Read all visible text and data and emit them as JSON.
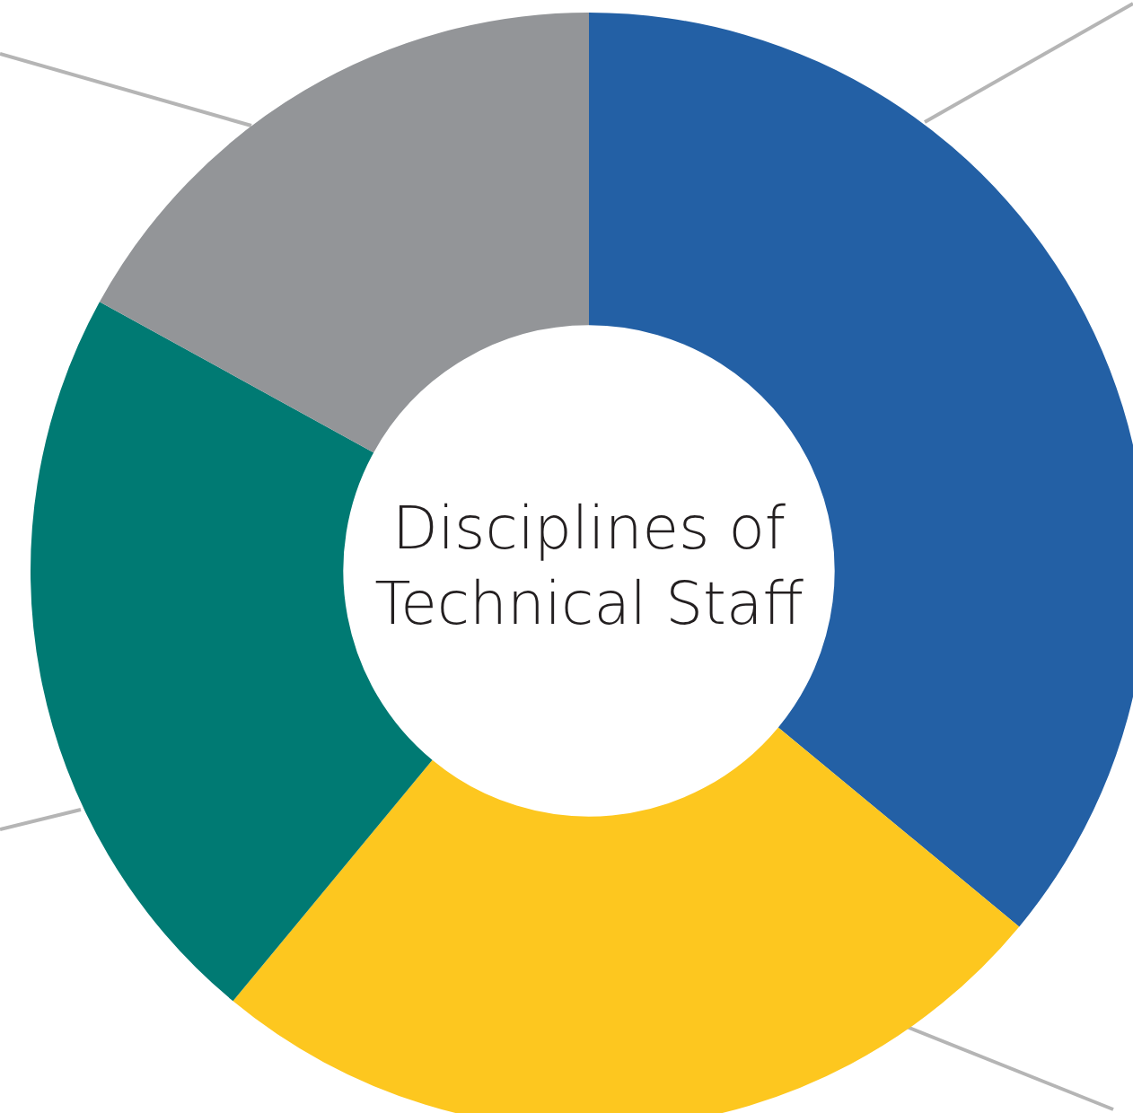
{
  "chart_data": {
    "type": "donut",
    "title": "Disciplines of Technical Staff",
    "categories": [
      null,
      null,
      null,
      null
    ],
    "values": [
      36,
      25,
      22,
      17
    ],
    "colors": [
      "#2360a5",
      "#fdc71f",
      "#007a73",
      "#939598"
    ]
  }
}
